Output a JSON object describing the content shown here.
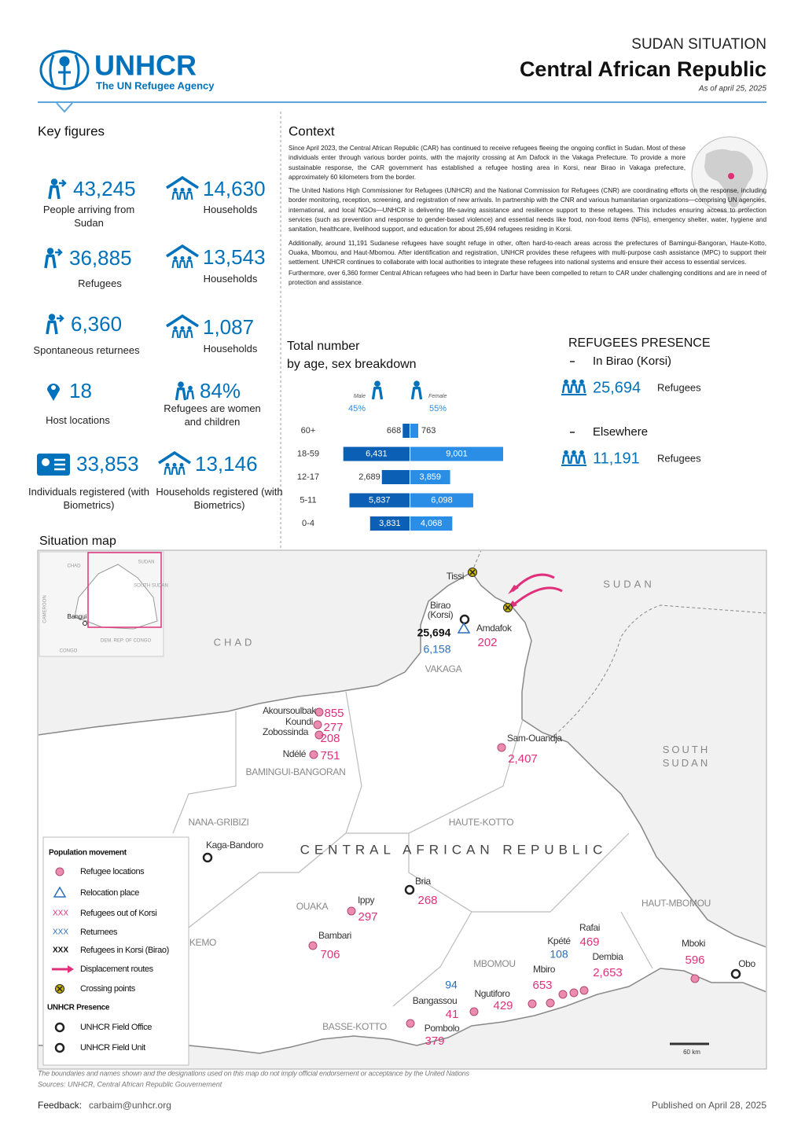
{
  "header": {
    "org": "UNHCR",
    "tagline": "The UN Refugee Agency",
    "kicker": "SUDAN SITUATION",
    "title": "Central African Republic",
    "date": "As of april 25, 2025"
  },
  "key_figures": {
    "title": "Key figures",
    "items": [
      {
        "value": "43,245",
        "label": "People arriving from Sudan"
      },
      {
        "value": "14,630",
        "label": "Households"
      },
      {
        "value": "36,885",
        "label": "Refugees"
      },
      {
        "value": "13,543",
        "label": "Households"
      },
      {
        "value": "6,360",
        "label": "Spontaneous returnees"
      },
      {
        "value": "1,087",
        "label": "Households"
      },
      {
        "value": "18",
        "label": "Host locations"
      },
      {
        "value": "84%",
        "label": "Refugees are women and children"
      },
      {
        "value": "33,853",
        "label": "Individuals registered (with Biometrics)"
      },
      {
        "value": "13,146",
        "label": "Households registered (with Biometrics)"
      }
    ]
  },
  "context": {
    "title": "Context",
    "paragraphs": [
      "Since April 2023, the Central African Republic (CAR) has continued to receive refugees fleeing the ongoing conflict in Sudan. Most of these individuals enter through various border points, with the majority crossing at Am Dafock in the Vakaga Prefecture. To provide a more sustainable response, the CAR government has established a refugee hosting area in Korsi, near Birao in Vakaga prefecture, approximately 60 kilometers from the border.",
      "The United Nations High Commissioner for Refugees (UNHCR) and the National Commission for Refugees (CNR) are coordinating efforts on the response, including border monitoring, reception, screening, and registration of new arrivals. In partnership with the CNR and various humanitarian organizations—comprising UN agencies, international, and local NGOs—UNHCR is delivering life-saving assistance and resilience support to these refugees. This includes ensuring access to protection services (such as prevention and response to gender-based violence) and essential needs like food, non-food items (NFIs), emergency shelter, water, hygiene and sanitation, healthcare, livelihood support, and education for about 25,694 refugees residing in Korsi.",
      "Additionally, around 11,191 Sudanese refugees have sought refuge in other, often hard-to-reach areas across the prefectures of Bamingui-Bangoran, Haute-Kotto, Ouaka, Mbomou, and Haut-Mbomou. After identification and registration, UNHCR provides these refugees with multi-purpose cash assistance (MPC) to support their settlement. UNHCR continues to collaborate with local authorities to integrate these refugees into national systems and ensure their access to essential services.",
      "Furthermore, over 6,360 former Central African refugees who had been in Darfur have been compelled to return to CAR under challenging conditions and are in need of protection and assistance."
    ]
  },
  "pyramid": {
    "title": [
      "Total number",
      "by age, sex breakdown"
    ],
    "categories": [
      "60+",
      "18-59",
      "12-17",
      "5-11",
      "0-4"
    ],
    "series": [
      {
        "name": "Male",
        "share": "45%",
        "color": "#0b5fb4",
        "values": [
          668,
          6431,
          2689,
          5837,
          3831
        ],
        "value_labels": [
          "668",
          "6,431",
          "2,689",
          "5,837",
          "3,831"
        ]
      },
      {
        "name": "Female",
        "share": "55%",
        "color": "#2b8ee6",
        "values": [
          763,
          9001,
          3859,
          6098,
          4068
        ],
        "value_labels": [
          "763",
          "9,001",
          "3,859",
          "6,098",
          "4,068"
        ]
      }
    ]
  },
  "presence": {
    "title": "REFUGEES PRESENCE",
    "groups": [
      {
        "name": "In Birao (Korsi)",
        "value": "25,694",
        "unit": "Refugees"
      },
      {
        "name": "Elsewhere",
        "value": "11,191",
        "unit": "Refugees"
      }
    ]
  },
  "map": {
    "title": "Situation map",
    "countries": [
      "SUDAN",
      "CHAD",
      "SOUTH SUDAN",
      "CENTRAL AFRICAN REPUBLIC"
    ],
    "prefectures": [
      "VAKAGA",
      "BAMINGUI-BANGORAN",
      "NANA-GRIBIZI",
      "HAUTE-KOTTO",
      "OUAKA",
      "KEMO",
      "MBOMOU",
      "HAUT-MBOMOU",
      "BASSE-KOTTO"
    ],
    "places": [
      {
        "name": "Tissi"
      },
      {
        "name": "Amdafok",
        "refugees": "202"
      },
      {
        "name": "Birao",
        "sub": "(Korsi)",
        "korsi": "25,694",
        "returnees": "6,158"
      },
      {
        "name": "Akoursoulbak",
        "refugees": "855"
      },
      {
        "name": "Koundi",
        "refugees": "277"
      },
      {
        "name": "Zobossinda",
        "refugees": "208"
      },
      {
        "name": "Ndélé",
        "refugees": "751"
      },
      {
        "name": "Sam-Ouandja",
        "refugees": "2,407"
      },
      {
        "name": "Kaga-Bandoro"
      },
      {
        "name": "Bria",
        "refugees": "268"
      },
      {
        "name": "Ippy",
        "refugees": "297"
      },
      {
        "name": "Bambari",
        "refugees": "706"
      },
      {
        "name": "Rafai",
        "refugees": "469"
      },
      {
        "name": "Kpété",
        "returnees": "108"
      },
      {
        "name": "Dembia",
        "refugees": "2,653"
      },
      {
        "name": "Mbiro",
        "refugees": "653"
      },
      {
        "name": "Ngutiforo",
        "refugees": "429"
      },
      {
        "name": "Bangassou",
        "returnees": "94",
        "refugees": "41"
      },
      {
        "name": "Pombolo",
        "refugees": "379"
      },
      {
        "name": "Mboki",
        "refugees": "596"
      },
      {
        "name": "Obo"
      }
    ],
    "inset": [
      "CHAD",
      "SUDAN",
      "SOUTH SUDAN",
      "CAMEROON",
      "Bangui",
      "DEM. REP. OF CONGO",
      "CONGO"
    ],
    "legend": {
      "title": "Population movement",
      "items": [
        {
          "label": "Refugee locations"
        },
        {
          "label": "Relocation place"
        },
        {
          "key": "XXX",
          "label": "Refugees out of Korsi"
        },
        {
          "key": "XXX",
          "label": "Returnees"
        },
        {
          "key": "XXX",
          "label": "Refugees in Korsi (Birao)"
        },
        {
          "label": "Displacement routes"
        },
        {
          "label": "Crossing points"
        }
      ],
      "presence_title": "UNHCR Presence",
      "presence": [
        "UNHCR Field Office",
        "UNHCR Field Unit"
      ]
    },
    "scale": "60 km"
  },
  "footer": {
    "disclaimer": "The boundaries and names shown and the designations used on this map do not imply official endorsement or acceptance by the United Nations",
    "sources": "Sources: UNHCR, Central African Republic Gouvernement",
    "feedback_label": "Feedback:",
    "email": "carbaim@unhcr.org",
    "published": "Published on April 28, 2025"
  }
}
